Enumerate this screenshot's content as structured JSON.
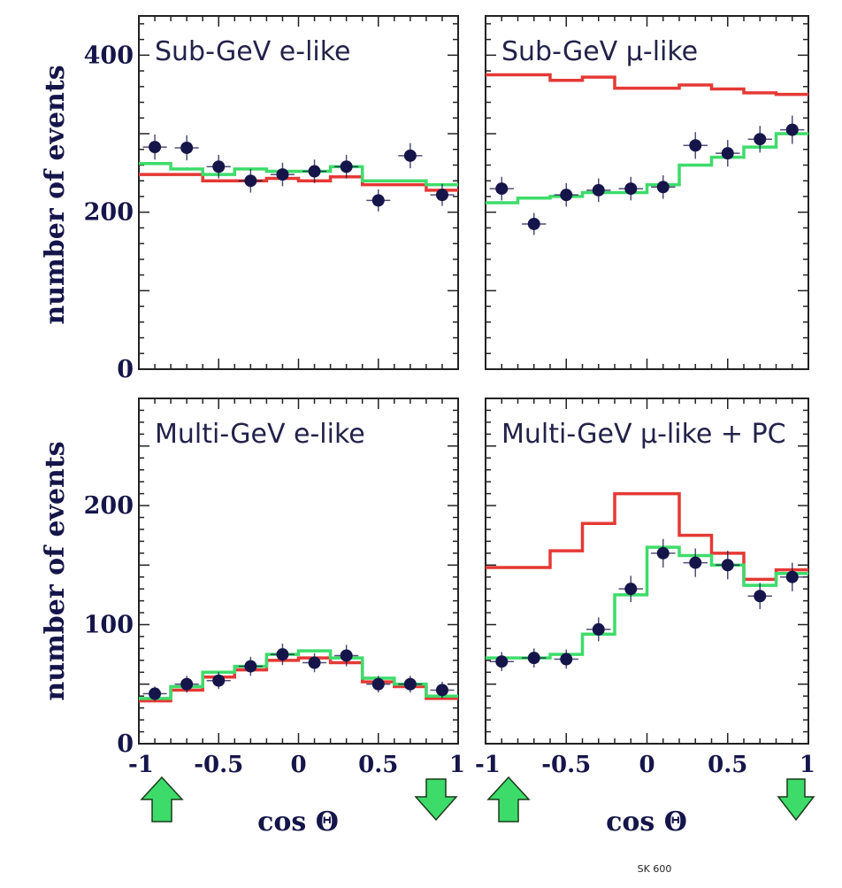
{
  "chart_data": [
    {
      "type": "line",
      "title": "Sub-GeV e-like",
      "ylabel": "number of events",
      "xlim": [
        -1,
        1
      ],
      "ylim": [
        0,
        450
      ],
      "yticks": [
        0,
        200,
        400
      ],
      "xticks": [
        -1,
        -0.5,
        0,
        0.5,
        1
      ],
      "bin_edges": [
        -1,
        -0.8,
        -0.6,
        -0.4,
        -0.2,
        0,
        0.2,
        0.4,
        0.6,
        0.8,
        1
      ],
      "series": [
        {
          "color": "#e53935",
          "values": [
            248,
            248,
            240,
            240,
            243,
            240,
            245,
            235,
            235,
            228
          ]
        },
        {
          "color": "#3ddc6a",
          "values": [
            262,
            255,
            248,
            255,
            252,
            252,
            258,
            240,
            240,
            235
          ]
        },
        {
          "color": "#15154a",
          "style": "points",
          "x": [
            -0.9,
            -0.7,
            -0.5,
            -0.3,
            -0.1,
            0.1,
            0.3,
            0.5,
            0.7,
            0.9
          ],
          "values": [
            283,
            282,
            258,
            240,
            248,
            252,
            258,
            215,
            272,
            222
          ],
          "yerr": [
            16,
            16,
            15,
            15,
            15,
            15,
            15,
            14,
            16,
            14
          ]
        }
      ]
    },
    {
      "type": "line",
      "title": "Sub-GeV μ-like",
      "xlim": [
        -1,
        1
      ],
      "ylim": [
        0,
        450
      ],
      "xticks": [
        -1,
        -0.5,
        0,
        0.5,
        1
      ],
      "bin_edges": [
        -1,
        -0.8,
        -0.6,
        -0.4,
        -0.2,
        0,
        0.2,
        0.4,
        0.6,
        0.8,
        1
      ],
      "series": [
        {
          "color": "#e53935",
          "values": [
            375,
            375,
            368,
            372,
            358,
            358,
            362,
            357,
            352,
            350
          ]
        },
        {
          "color": "#3ddc6a",
          "values": [
            212,
            218,
            220,
            225,
            225,
            235,
            260,
            270,
            283,
            300
          ]
        },
        {
          "color": "#15154a",
          "style": "points",
          "x": [
            -0.9,
            -0.7,
            -0.5,
            -0.3,
            -0.1,
            0.1,
            0.3,
            0.5,
            0.7,
            0.9
          ],
          "values": [
            230,
            185,
            222,
            228,
            230,
            232,
            285,
            275,
            293,
            305
          ],
          "yerr": [
            15,
            14,
            15,
            15,
            15,
            15,
            17,
            17,
            17,
            18
          ]
        }
      ]
    },
    {
      "type": "line",
      "title": "Multi-GeV e-like",
      "ylabel": "number of events",
      "xlabel": "cos Θ",
      "xlim": [
        -1,
        1
      ],
      "ylim": [
        0,
        290
      ],
      "yticks": [
        0,
        100,
        200
      ],
      "xticks": [
        -1,
        -0.5,
        0,
        0.5,
        1
      ],
      "bin_edges": [
        -1,
        -0.8,
        -0.6,
        -0.4,
        -0.2,
        0,
        0.2,
        0.4,
        0.6,
        0.8,
        1
      ],
      "series": [
        {
          "color": "#e53935",
          "values": [
            36,
            45,
            56,
            62,
            70,
            72,
            68,
            52,
            48,
            38
          ]
        },
        {
          "color": "#3ddc6a",
          "values": [
            38,
            48,
            60,
            65,
            75,
            78,
            72,
            55,
            50,
            40
          ]
        },
        {
          "color": "#15154a",
          "style": "points",
          "x": [
            -0.9,
            -0.7,
            -0.5,
            -0.3,
            -0.1,
            0.1,
            0.3,
            0.5,
            0.7,
            0.9
          ],
          "values": [
            42,
            50,
            53,
            65,
            75,
            68,
            74,
            50,
            50,
            45
          ],
          "yerr": [
            6,
            7,
            7,
            8,
            9,
            8,
            9,
            7,
            7,
            7
          ]
        }
      ]
    },
    {
      "type": "line",
      "title": "Multi-GeV μ-like + PC",
      "xlabel": "cos Θ",
      "xlim": [
        -1,
        1
      ],
      "ylim": [
        0,
        290
      ],
      "xticks": [
        -1,
        -0.5,
        0,
        0.5,
        1
      ],
      "bin_edges": [
        -1,
        -0.8,
        -0.6,
        -0.4,
        -0.2,
        0,
        0.2,
        0.4,
        0.6,
        0.8,
        1
      ],
      "series": [
        {
          "color": "#e53935",
          "values": [
            148,
            148,
            162,
            185,
            210,
            210,
            175,
            160,
            138,
            146
          ]
        },
        {
          "color": "#3ddc6a",
          "values": [
            72,
            72,
            75,
            92,
            125,
            165,
            158,
            150,
            133,
            143
          ]
        },
        {
          "color": "#15154a",
          "style": "points",
          "x": [
            -0.9,
            -0.7,
            -0.5,
            -0.3,
            -0.1,
            0.1,
            0.3,
            0.5,
            0.7,
            0.9
          ],
          "values": [
            69,
            72,
            71,
            96,
            130,
            160,
            152,
            150,
            124,
            140
          ],
          "yerr": [
            8,
            8,
            8,
            10,
            11,
            12,
            12,
            12,
            11,
            12
          ]
        }
      ]
    }
  ],
  "arrows": {
    "up_color": "#3ddc6a",
    "down_color": "#3ddc6a"
  },
  "credit": "SK 600"
}
